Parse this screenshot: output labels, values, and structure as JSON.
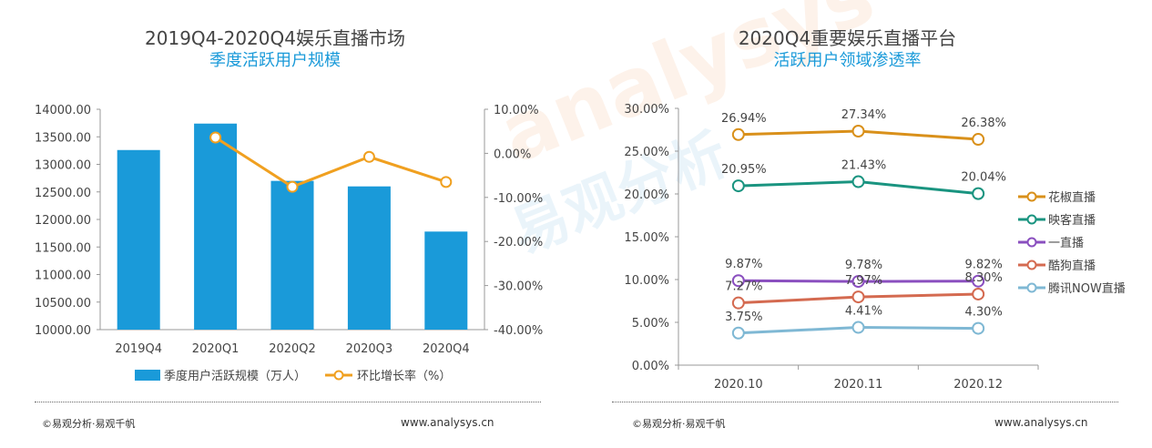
{
  "left": {
    "title_line1": "2019Q4-2020Q4娱乐直播市场",
    "title_line2": "季度活跃用户规模",
    "footer_left": "©易观分析·易观千帆",
    "footer_right": "www.analysys.cn"
  },
  "right": {
    "title_line1": "2020Q4重要娱乐直播平台",
    "title_line2": "活跃用户领域渗透率",
    "footer_left": "©易观分析·易观千帆",
    "footer_right": "www.analysys.cn"
  },
  "watermark": {
    "text_en": "analysys",
    "text_cn": "易观分析"
  },
  "colors": {
    "bar": "#1a9ad9",
    "growth_line": "#f0a020",
    "huajiao": "#d9901a",
    "yingke": "#1a9480",
    "yizhibo": "#8a4fbf",
    "kugou": "#d46a50",
    "tencent_now": "#7fb8d4"
  },
  "chart_data": [
    {
      "type": "bar",
      "categories": [
        "2019Q4",
        "2020Q1",
        "2020Q2",
        "2020Q3",
        "2020Q4"
      ],
      "series": [
        {
          "name": "季度用户活跃规模（万人）",
          "type": "bar",
          "axis": "left",
          "values": [
            13260,
            13740,
            12700,
            12600,
            11780
          ]
        },
        {
          "name": "环比增长率（%）",
          "type": "line",
          "axis": "right",
          "values": [
            null,
            3.6,
            -7.6,
            -0.8,
            -6.5
          ]
        }
      ],
      "ylim_left": [
        10000,
        14000
      ],
      "yticks_left": [
        "14000.00",
        "13500.00",
        "13000.00",
        "12500.00",
        "12000.00",
        "11500.00",
        "11000.00",
        "10500.00",
        "10000.00"
      ],
      "ylim_right": [
        -40,
        10
      ],
      "yticks_right": [
        "10.00%",
        "0.00%",
        "-10.00%",
        "-20.00%",
        "-30.00%",
        "-40.00%"
      ],
      "legend": "bottom"
    },
    {
      "type": "line",
      "x": [
        "2020.10",
        "2020.11",
        "2020.12"
      ],
      "series": [
        {
          "name": "花椒直播",
          "values": [
            26.94,
            27.34,
            26.38
          ],
          "labels": [
            "26.94%",
            "27.34%",
            "26.38%"
          ]
        },
        {
          "name": "映客直播",
          "values": [
            20.95,
            21.43,
            20.04
          ],
          "labels": [
            "20.95%",
            "21.43%",
            "20.04%"
          ]
        },
        {
          "name": "一直播",
          "values": [
            9.87,
            9.78,
            9.82
          ],
          "labels": [
            "9.87%",
            "9.78%",
            "9.82%"
          ]
        },
        {
          "name": "酷狗直播",
          "values": [
            7.27,
            7.97,
            8.3
          ],
          "labels": [
            "7.27%",
            "7.97%",
            "8.30%"
          ]
        },
        {
          "name": "腾讯NOW直播",
          "values": [
            3.75,
            4.41,
            4.3
          ],
          "labels": [
            "3.75%",
            "4.41%",
            "4.30%"
          ]
        }
      ],
      "ylim": [
        0,
        30
      ],
      "yticks": [
        "30.00%",
        "25.00%",
        "20.00%",
        "15.00%",
        "10.00%",
        "5.00%",
        "0.00%"
      ],
      "legend": "right"
    }
  ]
}
